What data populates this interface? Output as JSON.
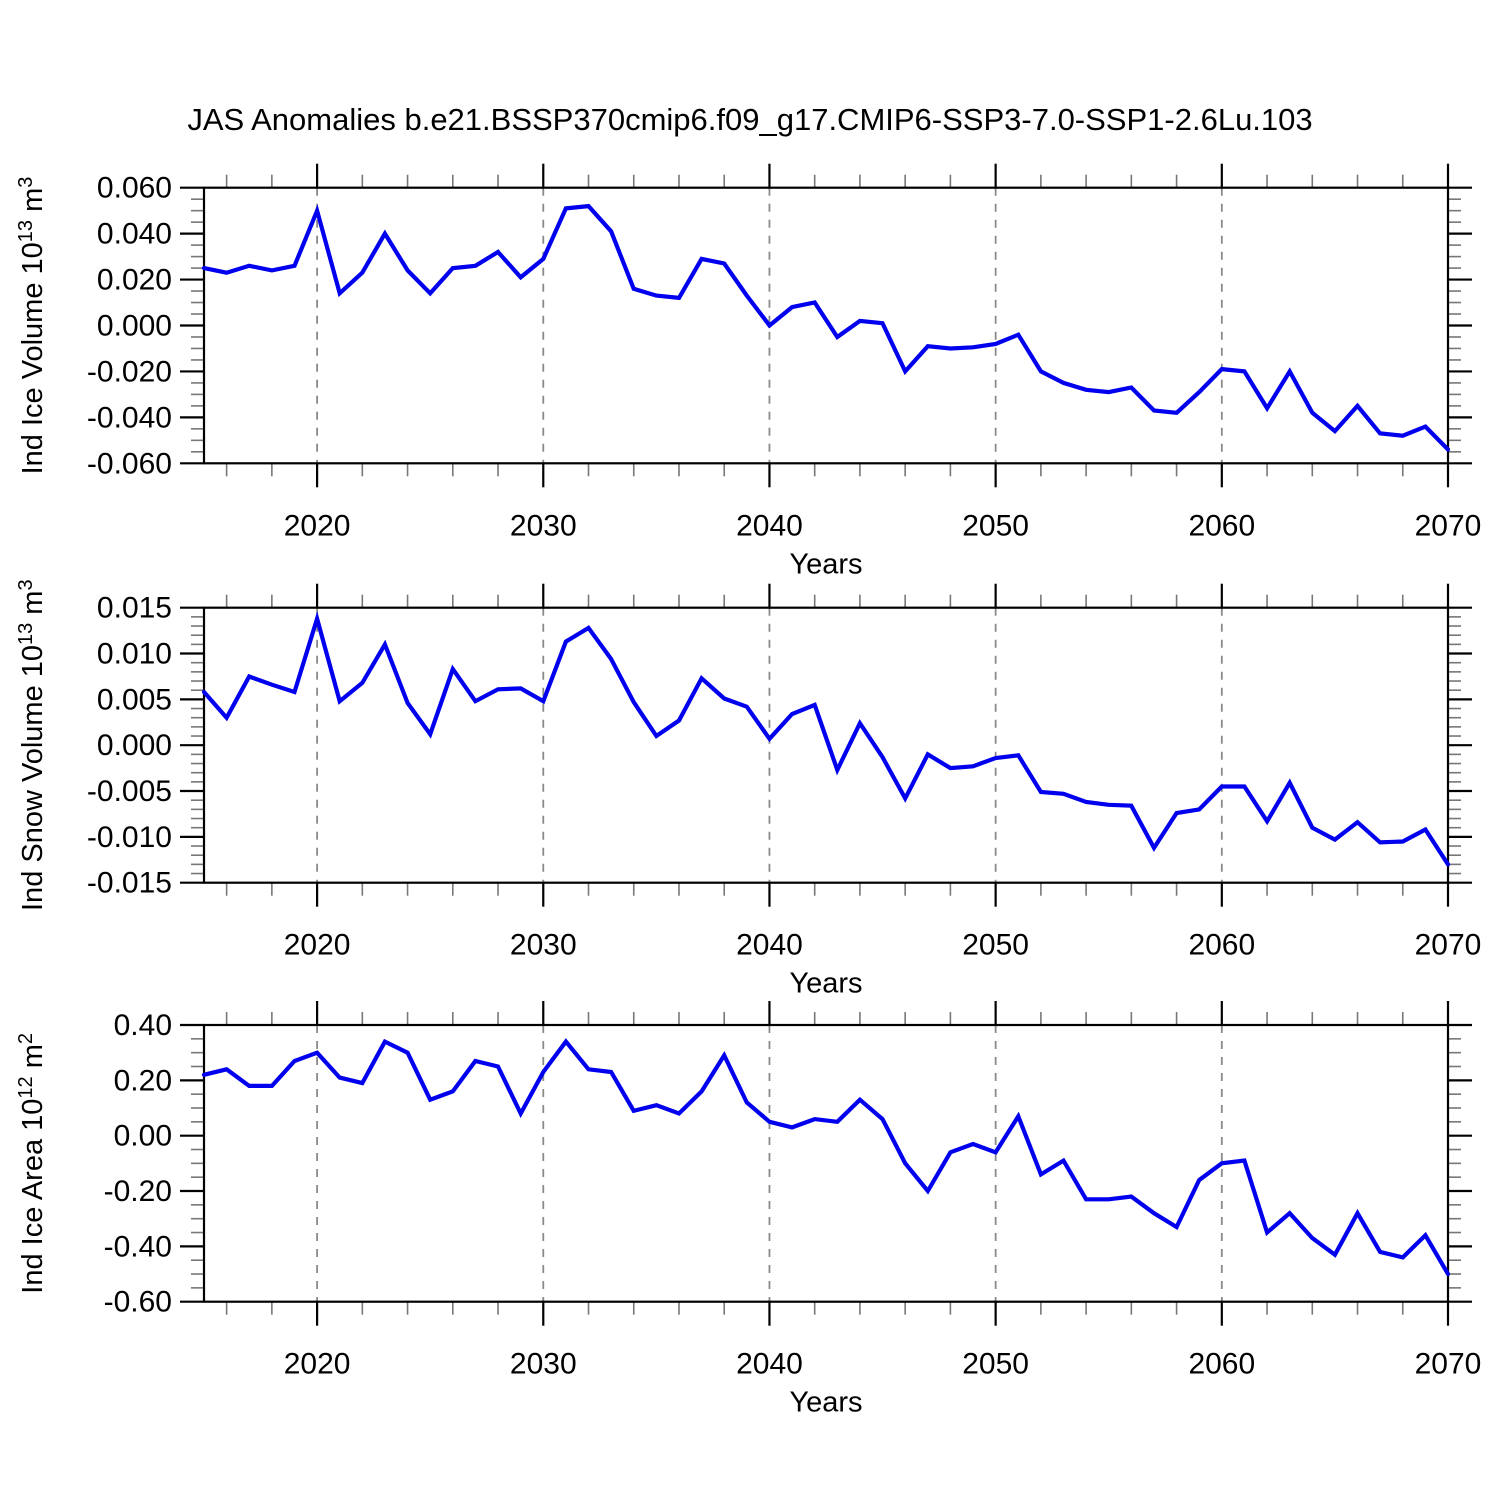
{
  "figure_title": "JAS Anomalies b.e21.BSSP370cmip6.f09_g17.CMIP6-SSP3-7.0-SSP1-2.6Lu.103",
  "x_tick_labels": [
    "2020",
    "2030",
    "2040",
    "2050",
    "2060",
    "2070"
  ],
  "x_ticks_major": [
    2020,
    2030,
    2040,
    2050,
    2060,
    2070
  ],
  "x_gridlines": [
    2020,
    2030,
    2040,
    2050,
    2060
  ],
  "x_minor_step": 2,
  "line_color": "#0000EE",
  "grid_color": "#8a8a8a",
  "chart_data": [
    {
      "type": "line",
      "name": "ice-volume",
      "ylabel": "Ind Ice Volume 10¹³ m³",
      "ylabel_parts": [
        {
          "text": "Ind Ice Volume 10",
          "sup": false
        },
        {
          "text": "13",
          "sup": true
        },
        {
          "text": " m",
          "sup": false
        },
        {
          "text": "3",
          "sup": true
        }
      ],
      "xlabel": "Years",
      "x_start": 2015,
      "x_end": 2070,
      "ylim": [
        -0.06,
        0.06
      ],
      "ytick_values": [
        0.06,
        0.04,
        0.02,
        0.0,
        -0.02,
        -0.04,
        -0.06
      ],
      "ytick_labels": [
        "0.060",
        "0.040",
        "0.020",
        "0.000",
        "-0.020",
        "-0.040",
        "-0.060"
      ],
      "ytick_major_step": 0.02,
      "ytick_minor_step": 0.005,
      "values": [
        0.025,
        0.023,
        0.026,
        0.024,
        0.026,
        0.05,
        0.014,
        0.023,
        0.04,
        0.024,
        0.014,
        0.025,
        0.026,
        0.032,
        0.021,
        0.029,
        0.051,
        0.052,
        0.041,
        0.016,
        0.013,
        0.012,
        0.029,
        0.027,
        0.013,
        0.0,
        0.008,
        0.01,
        -0.005,
        0.002,
        0.001,
        -0.02,
        -0.009,
        -0.01,
        -0.0095,
        -0.008,
        -0.004,
        -0.02,
        -0.025,
        -0.028,
        -0.029,
        -0.027,
        -0.037,
        -0.038,
        -0.029,
        -0.019,
        -0.02,
        -0.036,
        -0.02,
        -0.038,
        -0.046,
        -0.035,
        -0.047,
        -0.048,
        -0.044,
        -0.054
      ]
    },
    {
      "type": "line",
      "name": "snow-volume",
      "ylabel": "Ind Snow Volume 10¹³ m³",
      "ylabel_parts": [
        {
          "text": "Ind Snow Volume 10",
          "sup": false
        },
        {
          "text": "13",
          "sup": true
        },
        {
          "text": " m",
          "sup": false
        },
        {
          "text": "3",
          "sup": true
        }
      ],
      "xlabel": "Years",
      "x_start": 2015,
      "x_end": 2070,
      "ylim": [
        -0.015,
        0.015
      ],
      "ytick_values": [
        0.015,
        0.01,
        0.005,
        0.0,
        -0.005,
        -0.01,
        -0.015
      ],
      "ytick_labels": [
        "0.015",
        "0.010",
        "0.005",
        "0.000",
        "-0.005",
        "-0.010",
        "-0.015"
      ],
      "ytick_major_step": 0.005,
      "ytick_minor_step": 0.001,
      "values": [
        0.0058,
        0.003,
        0.0075,
        0.0066,
        0.0058,
        0.0138,
        0.0048,
        0.0068,
        0.011,
        0.0046,
        0.0012,
        0.0083,
        0.0048,
        0.0061,
        0.0062,
        0.0048,
        0.0113,
        0.0128,
        0.0094,
        0.0047,
        0.001,
        0.0027,
        0.0073,
        0.0051,
        0.0042,
        0.0007,
        0.0034,
        0.0044,
        -0.0027,
        0.0024,
        -0.0013,
        -0.0058,
        -0.001,
        -0.0025,
        -0.0023,
        -0.0014,
        -0.0011,
        -0.0051,
        -0.0053,
        -0.0062,
        -0.0065,
        -0.0066,
        -0.0112,
        -0.0074,
        -0.007,
        -0.0045,
        -0.0045,
        -0.0083,
        -0.0041,
        -0.009,
        -0.0103,
        -0.0084,
        -0.0106,
        -0.0105,
        -0.0092,
        -0.013
      ]
    },
    {
      "type": "line",
      "name": "ice-area",
      "ylabel": "Ind Ice Area 10¹² m²",
      "ylabel_parts": [
        {
          "text": "Ind Ice Area 10",
          "sup": false
        },
        {
          "text": "12",
          "sup": true
        },
        {
          "text": " m",
          "sup": false
        },
        {
          "text": "2",
          "sup": true
        }
      ],
      "xlabel": "Years",
      "x_start": 2015,
      "x_end": 2070,
      "ylim": [
        -0.6,
        0.4
      ],
      "ytick_values": [
        0.4,
        0.2,
        0.0,
        -0.2,
        -0.4,
        -0.6
      ],
      "ytick_labels": [
        "0.40",
        "0.20",
        "0.00",
        "-0.20",
        "-0.40",
        "-0.60"
      ],
      "ytick_major_step": 0.2,
      "ytick_minor_step": 0.05,
      "values": [
        0.22,
        0.24,
        0.18,
        0.18,
        0.27,
        0.3,
        0.21,
        0.19,
        0.34,
        0.3,
        0.13,
        0.16,
        0.27,
        0.25,
        0.08,
        0.23,
        0.34,
        0.24,
        0.23,
        0.09,
        0.11,
        0.08,
        0.16,
        0.29,
        0.12,
        0.05,
        0.03,
        0.06,
        0.05,
        0.13,
        0.06,
        -0.1,
        -0.2,
        -0.06,
        -0.03,
        -0.06,
        0.07,
        -0.14,
        -0.09,
        -0.23,
        -0.23,
        -0.22,
        -0.28,
        -0.33,
        -0.16,
        -0.1,
        -0.09,
        -0.35,
        -0.28,
        -0.37,
        -0.43,
        -0.28,
        -0.42,
        -0.44,
        -0.36,
        -0.5
      ]
    }
  ]
}
